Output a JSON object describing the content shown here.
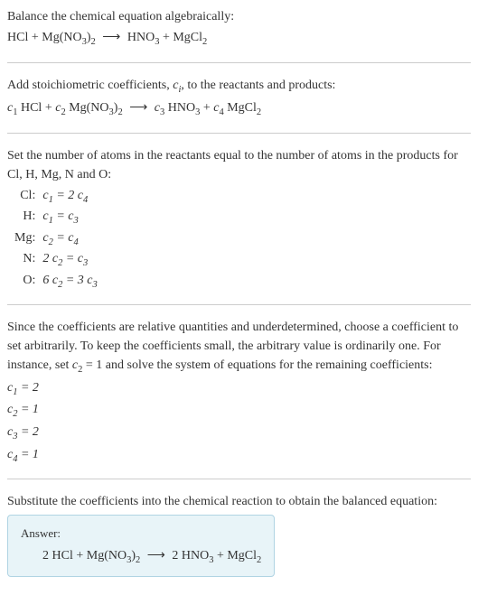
{
  "intro": {
    "line1": "Balance the chemical equation algebraically:",
    "reaction_lhs1": "HCl",
    "plus": " + ",
    "reaction_lhs2_base": "Mg(NO",
    "sub3": "3",
    "reaction_lhs2_close": ")",
    "sub2": "2",
    "arrow": "⟶",
    "reaction_rhs1_base": "HNO",
    "reaction_rhs2_base": "MgCl"
  },
  "stoich": {
    "text_a": "Add stoichiometric coefficients, ",
    "ci": "c",
    "ci_sub": "i",
    "text_b": ", to the reactants and products:",
    "c1": "c",
    "n1": "1",
    "c2": "c",
    "n2": "2",
    "c3": "c",
    "n3": "3",
    "c4": "c",
    "n4": "4"
  },
  "atoms": {
    "intro": "Set the number of atoms in the reactants equal to the number of atoms in the products for Cl, H, Mg, N and O:",
    "rows": [
      {
        "label": "Cl:",
        "eq_l": "c",
        "eq_l_sub": "1",
        "mid": " = 2 ",
        "eq_r": "c",
        "eq_r_sub": "4"
      },
      {
        "label": "H:",
        "eq_l": "c",
        "eq_l_sub": "1",
        "mid": " = ",
        "eq_r": "c",
        "eq_r_sub": "3"
      },
      {
        "label": "Mg:",
        "eq_l": "c",
        "eq_l_sub": "2",
        "mid": " = ",
        "eq_r": "c",
        "eq_r_sub": "4"
      },
      {
        "label": "N:",
        "pre": "2 ",
        "eq_l": "c",
        "eq_l_sub": "2",
        "mid": " = ",
        "eq_r": "c",
        "eq_r_sub": "3"
      },
      {
        "label": "O:",
        "pre": "6 ",
        "eq_l": "c",
        "eq_l_sub": "2",
        "mid": " = 3 ",
        "eq_r": "c",
        "eq_r_sub": "3"
      }
    ]
  },
  "choose": {
    "text_a": "Since the coefficients are relative quantities and underdetermined, choose a coefficient to set arbitrarily. To keep the coefficients small, the arbitrary value is ordinarily one. For instance, set ",
    "cvar": "c",
    "csub": "2",
    "text_b": " = 1 and solve the system of equations for the remaining coefficients:",
    "lines": [
      {
        "v": "c",
        "s": "1",
        "val": " = 2"
      },
      {
        "v": "c",
        "s": "2",
        "val": " = 1"
      },
      {
        "v": "c",
        "s": "3",
        "val": " = 2"
      },
      {
        "v": "c",
        "s": "4",
        "val": " = 1"
      }
    ]
  },
  "subst": {
    "text": "Substitute the coefficients into the chemical reaction to obtain the balanced equation:"
  },
  "answer": {
    "label": "Answer:",
    "two": "2 ",
    "hcl": "HCl",
    "plus": " + ",
    "mgno_a": "Mg(NO",
    "s3": "3",
    "mgno_b": ")",
    "s2": "2",
    "arrow": "⟶",
    "hno": "HNO",
    "mgcl": "MgCl"
  }
}
